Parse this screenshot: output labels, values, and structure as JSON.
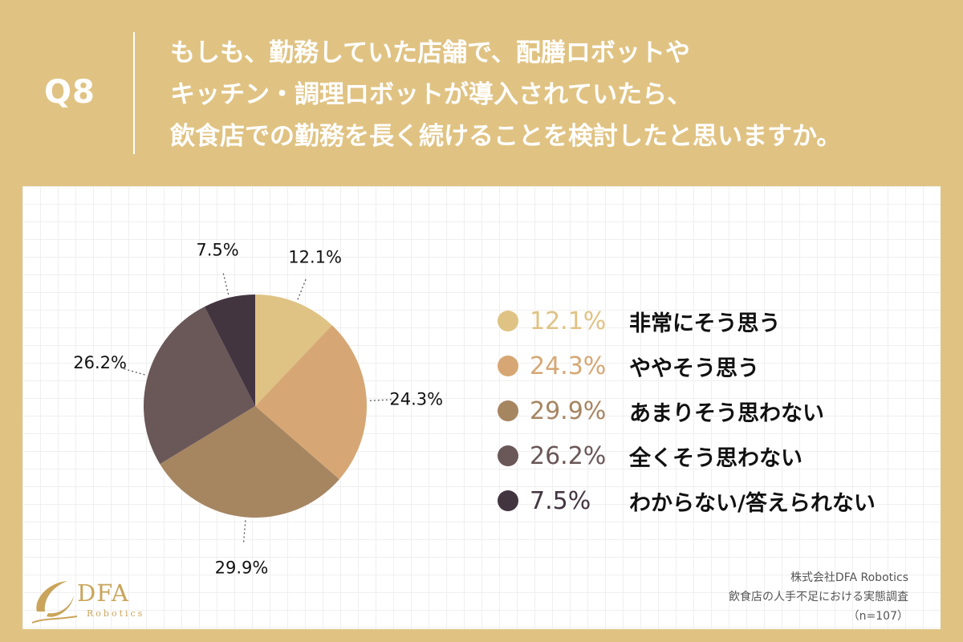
{
  "header": {
    "question_number": "Q8",
    "question_lines": [
      "もしも、勤務していた店舗で、配膳ロボットや",
      "キッチン・調理ロボットが導入されていたら、",
      "飲食店での勤務を長く続けることを検討したと思いますか。"
    ]
  },
  "chart_data": {
    "type": "pie",
    "title": "",
    "categories": [
      "非常にそう思う",
      "ややそう思う",
      "あまりそう思わない",
      "全くそう思わない",
      "わからない/答えられない"
    ],
    "values": [
      12.1,
      24.3,
      29.9,
      26.2,
      7.5
    ],
    "labels": [
      "12.1%",
      "24.3%",
      "29.9%",
      "26.2%",
      "7.5%"
    ],
    "colors": [
      "#dfc384",
      "#d6a774",
      "#a68561",
      "#6a5758",
      "#433540"
    ],
    "start": "12 o'clock",
    "direction": "clockwise",
    "legend_position": "right"
  },
  "footer": {
    "company": "株式会社DFA Robotics",
    "survey": "飲食店の人手不足における実態調査",
    "sample": "（n=107）"
  },
  "logo": {
    "name": "DFA",
    "sub": "Robotics",
    "mark_color": "#c9a45a"
  }
}
